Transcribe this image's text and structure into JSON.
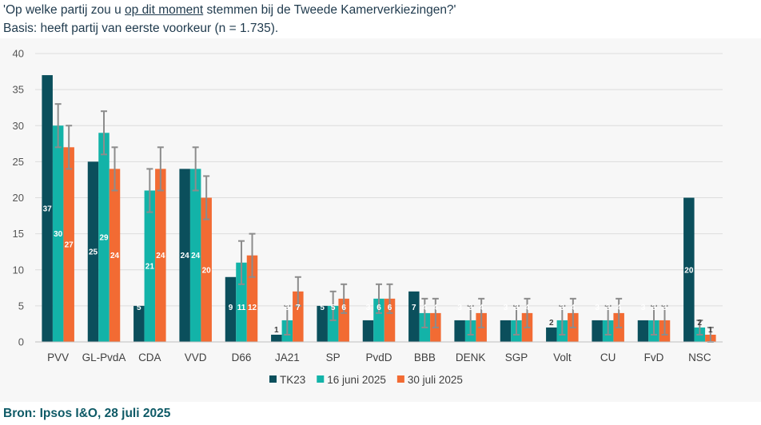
{
  "header": {
    "question_prefix": "'Op welke partij zou u ",
    "question_underlined": "op dit moment",
    "question_suffix": " stemmen bij de Tweede Kamerverkiezingen?'",
    "basis": "Basis: heeft partij van eerste voorkeur (n = 1.735)."
  },
  "footer": {
    "source": "Bron: Ipsos I&O, 28 juli 2025"
  },
  "colors": {
    "TK23": "#0b4f5c",
    "juni": "#13b3a8",
    "juli": "#f26b33",
    "errorbar": "#8c8c8c",
    "grid": "#dcdcdc"
  },
  "chart_data": {
    "type": "bar",
    "ylim": [
      0,
      40
    ],
    "yticks": [
      0,
      5,
      10,
      15,
      20,
      25,
      30,
      35,
      40
    ],
    "grid": true,
    "legend_position": "bottom",
    "categories": [
      "PVV",
      "GL-PvdA",
      "CDA",
      "VVD",
      "D66",
      "JA21",
      "SP",
      "PvdD",
      "BBB",
      "DENK",
      "SGP",
      "Volt",
      "CU",
      "FvD",
      "NSC"
    ],
    "series": [
      {
        "name": "TK23",
        "values": [
          37,
          25,
          5,
          24,
          9,
          1,
          5,
          3,
          7,
          3,
          3,
          2,
          3,
          3,
          20
        ],
        "error": null
      },
      {
        "name": "16 juni 2025",
        "values": [
          30,
          29,
          21,
          24,
          11,
          3,
          5,
          6,
          4,
          3,
          3,
          3,
          3,
          3,
          2
        ],
        "error": [
          3,
          3,
          3,
          3,
          3,
          2,
          2,
          2,
          2,
          2,
          2,
          2,
          2,
          2,
          1
        ]
      },
      {
        "name": "30 juli 2025",
        "values": [
          27,
          24,
          24,
          20,
          12,
          7,
          6,
          6,
          4,
          4,
          4,
          4,
          4,
          3,
          1
        ],
        "error": [
          3,
          3,
          3,
          3,
          3,
          2,
          2,
          2,
          2,
          2,
          2,
          2,
          2,
          2,
          1
        ]
      }
    ]
  }
}
